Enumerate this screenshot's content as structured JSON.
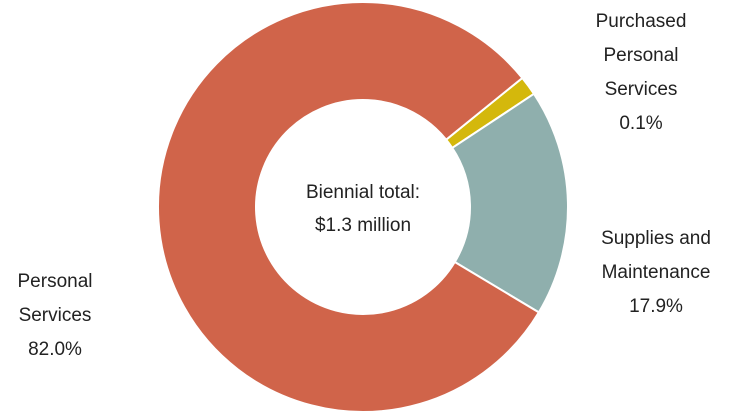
{
  "chart_data": {
    "type": "pie",
    "donut": true,
    "center_label": [
      "Biennial total:",
      "$1.3 million"
    ],
    "slices": [
      {
        "label": [
          "Purchased",
          "Personal",
          "Services"
        ],
        "percent_text": "0.1%",
        "value": 0.1,
        "color": "#d4b80c"
      },
      {
        "label": [
          "Supplies and",
          "Maintenance"
        ],
        "percent_text": "17.9%",
        "value": 17.9,
        "color": "#8fafad"
      },
      {
        "label": [
          "Personal",
          "Services"
        ],
        "percent_text": "82.0%",
        "value": 82.0,
        "color": "#d0644a"
      }
    ]
  }
}
